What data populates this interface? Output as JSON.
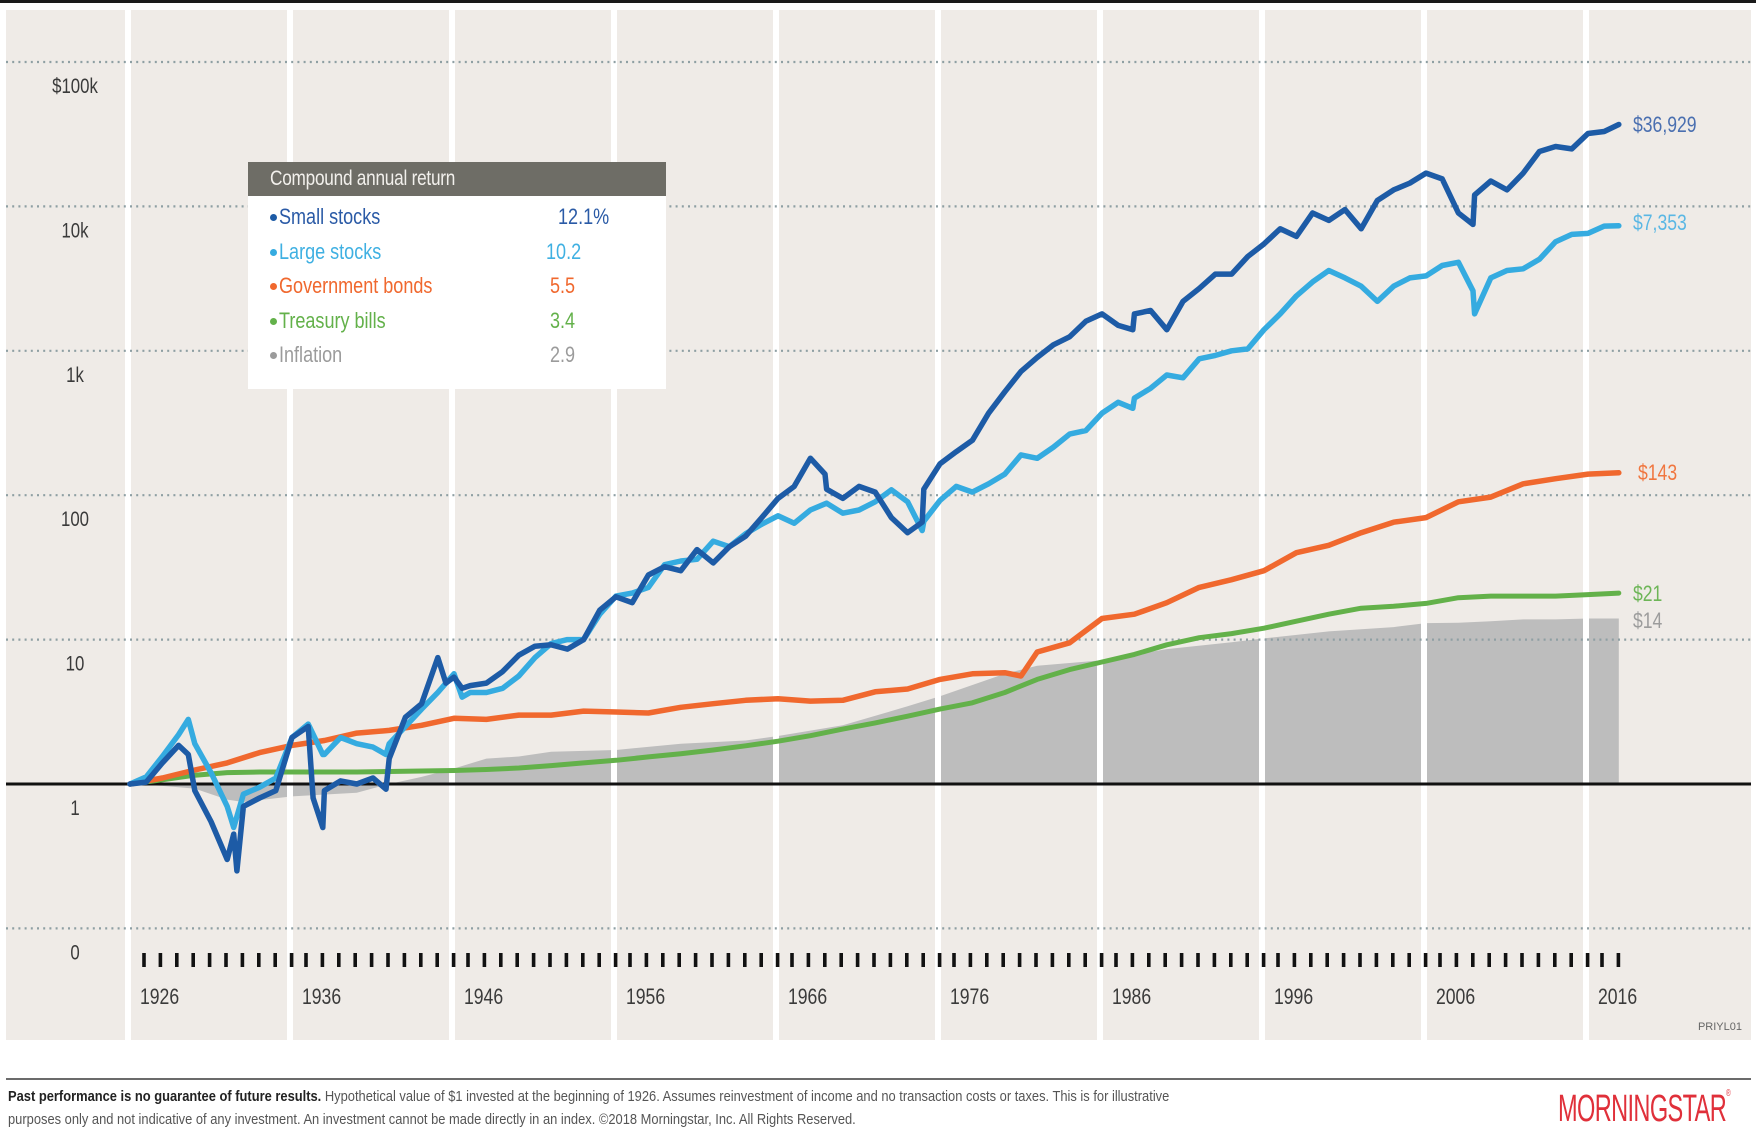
{
  "chart_data": {
    "type": "line",
    "title": "",
    "xlabel": "",
    "ylabel": "",
    "y_scale": "log",
    "ylim": [
      0.1,
      100000
    ],
    "xlim": [
      1926,
      2017.9
    ],
    "y_ticks": [
      {
        "value": 100000,
        "label": "$100k"
      },
      {
        "value": 10000,
        "label": "10k"
      },
      {
        "value": 1000,
        "label": "1k"
      },
      {
        "value": 100,
        "label": "100"
      },
      {
        "value": 10,
        "label": "10"
      },
      {
        "value": 1,
        "label": "1"
      },
      {
        "value": 0.1,
        "label": "0"
      }
    ],
    "x_ticks": [
      1926,
      1936,
      1946,
      1956,
      1966,
      1976,
      1986,
      1996,
      2006,
      2016
    ],
    "x_tick_labels": [
      "1926",
      "1936",
      "1946",
      "1956",
      "1966",
      "1976",
      "1986",
      "1996",
      "2006",
      "2016"
    ],
    "minor_ticks_per_year": true,
    "grid": "horizontal dotted",
    "baseline_value": 1,
    "legend": {
      "title": "Compound annual return",
      "placement": "top-left",
      "entries": [
        {
          "name": "Small stocks",
          "return": "12.1%",
          "color": "#1d5ba6"
        },
        {
          "name": "Large stocks",
          "return": "10.2",
          "color": "#35abe0"
        },
        {
          "name": "Government bonds",
          "return": "5.5",
          "color": "#f0682e"
        },
        {
          "name": "Treasury bills",
          "return": "3.4",
          "color": "#63b14a"
        },
        {
          "name": "Inflation",
          "return": "2.9",
          "color": "#9b9b9b"
        }
      ]
    },
    "series": [
      {
        "name": "Small stocks",
        "color": "#1d5ba6",
        "end_label": "$36,929",
        "x": [
          1926,
          1927,
          1928,
          1929,
          1929.6,
          1930,
          1931,
          1932,
          1932.4,
          1932.6,
          1933,
          1934,
          1935,
          1936,
          1937,
          1937.3,
          1937.9,
          1938,
          1939,
          1940,
          1941,
          1941.8,
          1942,
          1943,
          1944,
          1945,
          1945.5,
          1946,
          1946.5,
          1947,
          1948,
          1949,
          1950,
          1951,
          1952,
          1953,
          1954,
          1955,
          1956,
          1957,
          1958,
          1959,
          1960,
          1961,
          1962,
          1963,
          1964,
          1965,
          1966,
          1967,
          1968,
          1968.9,
          1969,
          1970,
          1971,
          1972,
          1973,
          1974,
          1974.9,
          1975,
          1976,
          1977,
          1978,
          1979,
          1980,
          1981,
          1982,
          1983,
          1984,
          1985,
          1986,
          1987,
          1987.9,
          1988,
          1989,
          1990,
          1991,
          1992,
          1993,
          1994,
          1995,
          1996,
          1997,
          1998,
          1999,
          2000,
          2001,
          2002,
          2003,
          2004,
          2005,
          2006,
          2007,
          2008,
          2008.9,
          2009,
          2010,
          2011,
          2012,
          2013,
          2014,
          2015,
          2016,
          2017,
          2017.9
        ],
        "values": [
          1,
          1.03,
          1.4,
          1.85,
          1.6,
          0.9,
          0.55,
          0.3,
          0.45,
          0.25,
          0.7,
          0.8,
          0.9,
          2.1,
          2.5,
          0.8,
          0.5,
          0.9,
          1.05,
          1.0,
          1.1,
          0.92,
          1.5,
          2.9,
          3.6,
          7.5,
          5.0,
          5.5,
          4.6,
          4.8,
          5.0,
          6.0,
          7.8,
          9.0,
          9.2,
          8.6,
          10.0,
          16.0,
          19.8,
          18.0,
          28.0,
          32.0,
          30.0,
          42.0,
          34.0,
          44.0,
          52.0,
          70.0,
          95.0,
          115.0,
          180.0,
          140.0,
          110.0,
          95.0,
          115.0,
          105.0,
          70.0,
          55.0,
          65.0,
          110.0,
          165.0,
          200.0,
          240.0,
          370.0,
          520.0,
          720.0,
          900.0,
          1100.0,
          1250.0,
          1600.0,
          1800.0,
          1500.0,
          1400.0,
          1800.0,
          1900.0,
          1400.0,
          2200.0,
          2700.0,
          3400.0,
          3400.0,
          4500.0,
          5500.0,
          7000.0,
          6200.0,
          9000.0,
          8000.0,
          9500.0,
          7000.0,
          11000.0,
          13000.0,
          14500.0,
          17000.0,
          15500.0,
          9000.0,
          7500.0,
          12000.0,
          15000.0,
          13000.0,
          17000.0,
          24000.0,
          26000.0,
          25000.0,
          32000.0,
          33000.0,
          36929.0
        ]
      },
      {
        "name": "Large stocks",
        "color": "#35abe0",
        "end_label": "$7,353",
        "x": [
          1926,
          1927,
          1928,
          1929,
          1929.6,
          1930,
          1931,
          1932,
          1932.4,
          1933,
          1934,
          1935,
          1936,
          1937,
          1937.9,
          1938,
          1939,
          1940,
          1941,
          1941.8,
          1942,
          1943,
          1944,
          1945,
          1946,
          1946.5,
          1947,
          1948,
          1949,
          1950,
          1951,
          1952,
          1953,
          1954,
          1955,
          1956,
          1957,
          1958,
          1959,
          1960,
          1961,
          1962,
          1963,
          1964,
          1965,
          1966,
          1967,
          1968,
          1969,
          1970,
          1971,
          1972,
          1973,
          1974,
          1974.9,
          1975,
          1976,
          1977,
          1978,
          1979,
          1980,
          1981,
          1982,
          1983,
          1984,
          1985,
          1986,
          1987,
          1987.9,
          1988,
          1989,
          1990,
          1991,
          1992,
          1993,
          1994,
          1995,
          1996,
          1997,
          1998,
          1999,
          2000,
          2001,
          2002,
          2003,
          2004,
          2005,
          2006,
          2007,
          2008,
          2008.9,
          2009,
          2010,
          2011,
          2012,
          2013,
          2014,
          2015,
          2016,
          2017,
          2017.9
        ],
        "values": [
          1,
          1.12,
          1.55,
          2.2,
          2.8,
          1.9,
          1.2,
          0.7,
          0.5,
          0.85,
          0.95,
          1.1,
          2.1,
          2.6,
          1.6,
          1.6,
          2.1,
          1.9,
          1.8,
          1.6,
          1.9,
          2.5,
          3.3,
          4.3,
          5.8,
          4.0,
          4.3,
          4.3,
          4.6,
          5.6,
          7.5,
          9.4,
          10.0,
          10.0,
          15.0,
          20.0,
          21.0,
          23.0,
          33.0,
          35.0,
          36.0,
          48.0,
          44.0,
          54.0,
          63.0,
          72.0,
          64.0,
          79.0,
          88.0,
          75.0,
          79.0,
          90.0,
          109.0,
          90.0,
          57.0,
          66.0,
          92.0,
          115.0,
          105.0,
          120.0,
          140.0,
          190.0,
          180.0,
          215.0,
          265.0,
          280.0,
          370.0,
          440.0,
          400.0,
          470.0,
          550.0,
          680.0,
          650.0,
          880.0,
          930.0,
          1000.0,
          1030.0,
          1400.0,
          1800.0,
          2400.0,
          3000.0,
          3600.0,
          3200.0,
          2800.0,
          2200.0,
          2800.0,
          3200.0,
          3300.0,
          3900.0,
          4100.0,
          2600.0,
          1800.0,
          3200.0,
          3600.0,
          3700.0,
          4300.0,
          5700.0,
          6400.0,
          6500.0,
          7300.0,
          7353.0
        ]
      },
      {
        "name": "Government bonds",
        "color": "#f0682e",
        "end_label": "$143",
        "x": [
          1926,
          1928,
          1930,
          1932,
          1934,
          1936,
          1938,
          1940,
          1942,
          1944,
          1946,
          1948,
          1950,
          1952,
          1954,
          1956,
          1958,
          1960,
          1962,
          1964,
          1966,
          1968,
          1970,
          1972,
          1974,
          1976,
          1978,
          1980,
          1981,
          1982,
          1984,
          1986,
          1988,
          1990,
          1992,
          1994,
          1996,
          1998,
          2000,
          2002,
          2004,
          2006,
          2008,
          2010,
          2012,
          2014,
          2016,
          2017.9
        ],
        "values": [
          1,
          1.1,
          1.25,
          1.4,
          1.65,
          1.85,
          2.0,
          2.25,
          2.35,
          2.55,
          2.85,
          2.8,
          3.0,
          3.0,
          3.2,
          3.15,
          3.1,
          3.4,
          3.6,
          3.8,
          3.9,
          3.75,
          3.8,
          4.35,
          4.55,
          5.3,
          5.8,
          5.9,
          5.6,
          8.2,
          9.5,
          14.0,
          15.0,
          18.0,
          23.0,
          26.0,
          30.0,
          40.0,
          45.0,
          55.0,
          65.0,
          70.0,
          90.0,
          97.0,
          120.0,
          130.0,
          140.0,
          143.0
        ]
      },
      {
        "name": "Treasury bills",
        "color": "#63b14a",
        "end_label": "$21",
        "x": [
          1926,
          1928,
          1930,
          1932,
          1934,
          1936,
          1938,
          1940,
          1942,
          1944,
          1946,
          1948,
          1950,
          1952,
          1954,
          1956,
          1958,
          1960,
          1962,
          1964,
          1966,
          1968,
          1970,
          1972,
          1974,
          1976,
          1978,
          1980,
          1982,
          1984,
          1986,
          1988,
          1990,
          1992,
          1994,
          1996,
          1998,
          2000,
          2002,
          2004,
          2006,
          2008,
          2010,
          2012,
          2014,
          2016,
          2017.9
        ],
        "values": [
          1,
          1.07,
          1.15,
          1.2,
          1.21,
          1.21,
          1.21,
          1.21,
          1.22,
          1.23,
          1.24,
          1.26,
          1.29,
          1.34,
          1.4,
          1.46,
          1.54,
          1.62,
          1.72,
          1.84,
          1.98,
          2.16,
          2.4,
          2.65,
          2.95,
          3.3,
          3.65,
          4.3,
          5.3,
          6.2,
          7.0,
          7.9,
          9.2,
          10.3,
          11.0,
          12.0,
          13.4,
          15.0,
          16.5,
          17.0,
          17.8,
          19.5,
          20.0,
          20.0,
          20.0,
          20.5,
          21.0
        ]
      },
      {
        "name": "Inflation",
        "color": "#bdbdbd",
        "end_label": "$14",
        "type": "area",
        "x": [
          1926,
          1928,
          1930,
          1932,
          1933,
          1936,
          1940,
          1942,
          1944,
          1946,
          1948,
          1950,
          1952,
          1956,
          1960,
          1964,
          1966,
          1970,
          1974,
          1976,
          1980,
          1982,
          1986,
          1990,
          1994,
          1996,
          2000,
          2004,
          2006,
          2008,
          2010,
          2012,
          2014,
          2016,
          2017.9
        ],
        "values": [
          1,
          0.97,
          0.93,
          0.78,
          0.75,
          0.82,
          0.87,
          1.0,
          1.12,
          1.28,
          1.5,
          1.55,
          1.67,
          1.72,
          1.9,
          2.0,
          2.15,
          2.55,
          3.45,
          4.05,
          5.8,
          6.6,
          7.2,
          8.6,
          9.6,
          10.2,
          11.4,
          12.2,
          13.0,
          13.1,
          13.4,
          13.8,
          13.8,
          14.0,
          14.0
        ]
      }
    ]
  },
  "chart_code": "PRIYL01",
  "footer": {
    "bold": "Past performance is no guarantee of future results.",
    "line1": " Hypothetical value of $1 invested at the beginning of 1926. Assumes reinvestment of income and no transaction costs or taxes. This is for illustrative",
    "line2": "purposes only and not indicative of any investment. An investment cannot be made directly in an index. ©2018 Morningstar, Inc. All Rights Reserved."
  },
  "logo": {
    "text": "MORNINGSTAR",
    "registered": "®",
    "color": "#e0303a"
  },
  "colors": {
    "panel_background": "#efebe7",
    "legend_header": "#6e6d66",
    "gridline": "#8e9fa3"
  }
}
